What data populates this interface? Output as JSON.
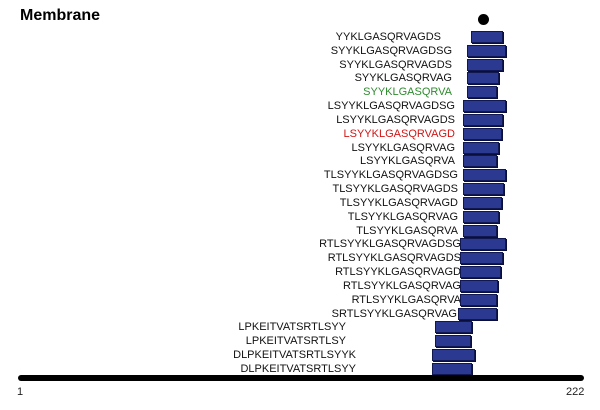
{
  "title": "Membrane",
  "axis": {
    "start": "1",
    "end": "222"
  },
  "colors": {
    "bar": "#2b3990",
    "default_text": "#111111",
    "green": "#2e8b2e",
    "red": "#d01515"
  },
  "peptides": [
    {
      "seq": "YYKLGASQRVAGDS",
      "color": "default"
    },
    {
      "seq": "SYYKLGASQRVAGDSG",
      "color": "default"
    },
    {
      "seq": "SYYKLGASQRVAGDS",
      "color": "default"
    },
    {
      "seq": "SYYKLGASQRVAG",
      "color": "default"
    },
    {
      "seq": "SYYKLGASQRVA",
      "color": "green"
    },
    {
      "seq": "LSYYKLGASQRVAGDSG",
      "color": "default"
    },
    {
      "seq": "LSYYKLGASQRVAGDS",
      "color": "default"
    },
    {
      "seq": "LSYYKLGASQRVAGD",
      "color": "red"
    },
    {
      "seq": "LSYYKLGASQRVAG",
      "color": "default"
    },
    {
      "seq": "LSYYKLGASQRVA",
      "color": "default"
    },
    {
      "seq": "TLSYYKLGASQRVAGDSG",
      "color": "default"
    },
    {
      "seq": "TLSYYKLGASQRVAGDS",
      "color": "default"
    },
    {
      "seq": "TLSYYKLGASQRVAGD",
      "color": "default"
    },
    {
      "seq": "TLSYYKLGASQRVAG",
      "color": "default"
    },
    {
      "seq": "TLSYYKLGASQRVA",
      "color": "default"
    },
    {
      "seq": "RTLSYYKLGASQRVAGDSG",
      "color": "default"
    },
    {
      "seq": "RTLSYYKLGASQRVAGDS",
      "color": "default"
    },
    {
      "seq": "RTLSYYKLGASQRVAGD",
      "color": "default"
    },
    {
      "seq": "RTLSYYKLGASQRVAG",
      "color": "default"
    },
    {
      "seq": "RTLSYYKLGASQRVA",
      "color": "default"
    },
    {
      "seq": "SRTLSYYKLGASQRVAG",
      "color": "default"
    },
    {
      "seq": "LPKEITVATSRTLSYY",
      "color": "default"
    },
    {
      "seq": "LPKEITVATSRTLSY",
      "color": "default"
    },
    {
      "seq": "DLPKEITVATSRTLSYYK",
      "color": "default"
    },
    {
      "seq": "DLPKEITVATSRTLSYY",
      "color": "default"
    }
  ]
}
